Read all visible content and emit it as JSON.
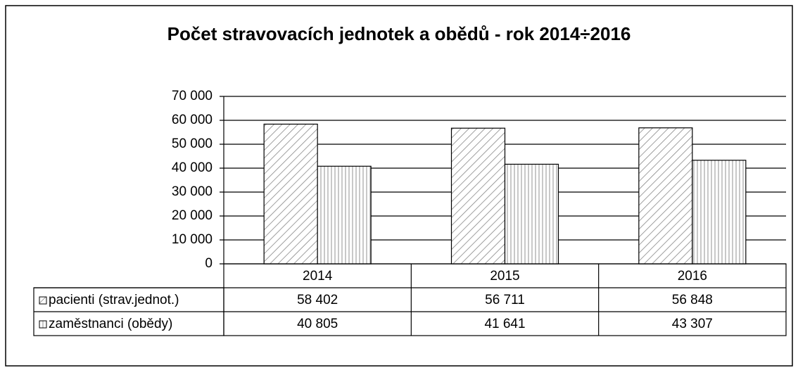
{
  "chart_data": {
    "type": "bar",
    "title": "Počet stravovacích jednotek a obědů - rok 2014÷2016",
    "categories": [
      "2014",
      "2015",
      "2016"
    ],
    "series": [
      {
        "name": "pacienti (strav.jednot.)",
        "color": "#ffffff",
        "pattern": "diagonal",
        "values": [
          58402,
          56711,
          56848
        ],
        "value_labels": [
          "58 402",
          "56 711",
          "56 848"
        ]
      },
      {
        "name": "zaměstnanci (obědy)",
        "color": "#ffffff",
        "pattern": "vertical",
        "values": [
          40805,
          41641,
          43307
        ],
        "value_labels": [
          "40 805",
          "41 641",
          "43 307"
        ]
      }
    ],
    "ylim": [
      0,
      70000
    ],
    "yticks": [
      0,
      {
        "value": 10000,
        "label": "10 000"
      },
      {
        "value": 20000,
        "label": "20 000"
      },
      {
        "value": 30000,
        "label": "30 000"
      },
      {
        "value": 40000,
        "label": "40 000"
      },
      {
        "value": 50000,
        "label": "50 000"
      },
      {
        "value": 60000,
        "label": "60 000"
      },
      {
        "value": 70000,
        "label": "70 000"
      }
    ],
    "grid": true
  }
}
